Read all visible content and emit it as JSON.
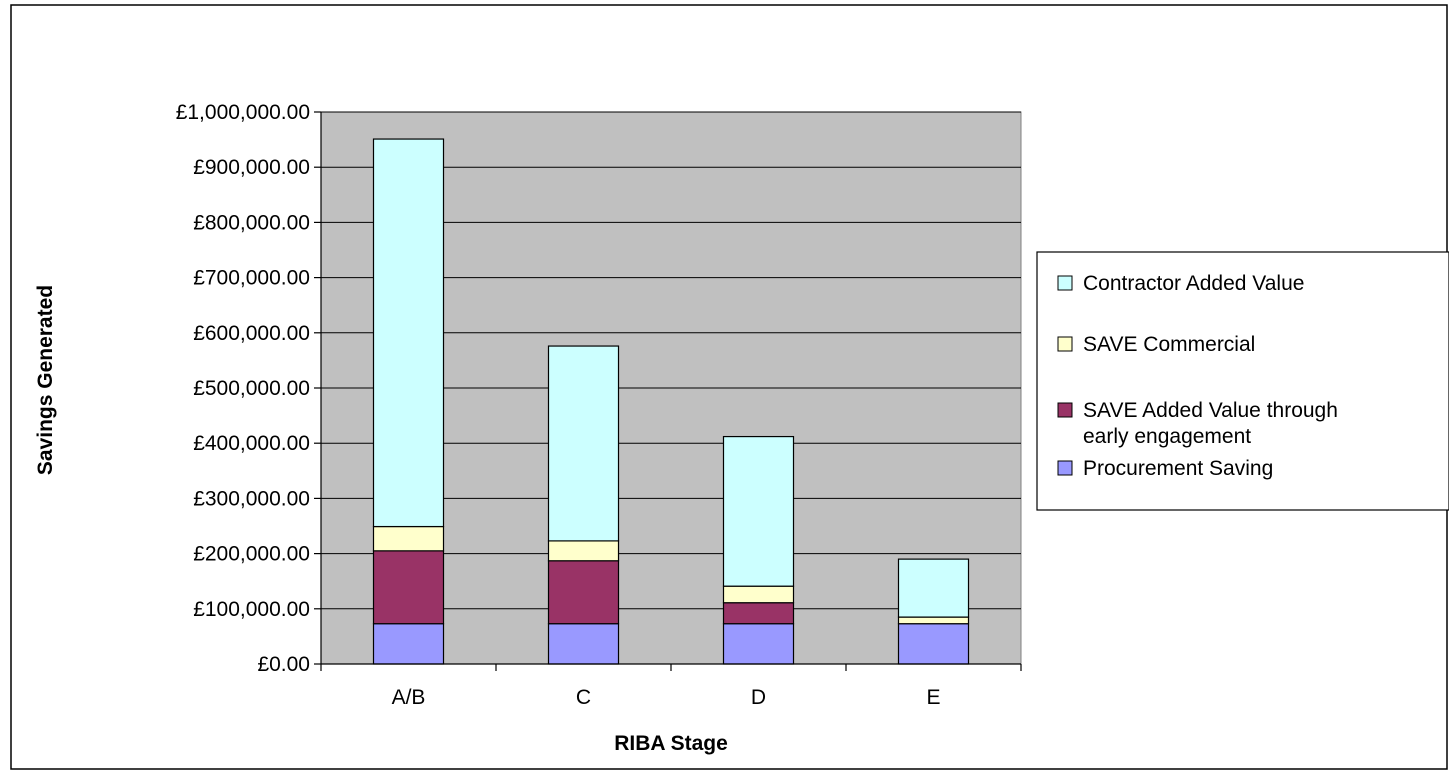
{
  "chart_data": {
    "type": "bar",
    "stacked": true,
    "categories": [
      "A/B",
      "C",
      "D",
      "E"
    ],
    "series": [
      {
        "name": "Procurement Saving",
        "color": "#9999ff",
        "values": [
          73000,
          73000,
          73000,
          73000
        ]
      },
      {
        "name": "SAVE Added Value through early engagement",
        "color": "#993366",
        "values": [
          132000,
          114000,
          38000,
          0
        ]
      },
      {
        "name": "SAVE Commercial",
        "color": "#ffffcc",
        "values": [
          44000,
          36000,
          30000,
          12000
        ]
      },
      {
        "name": "Contractor Added Value",
        "color": "#ccffff",
        "values": [
          702000,
          353000,
          271000,
          105000
        ]
      }
    ],
    "ylim": [
      0,
      1000000
    ],
    "yticks": [
      "£0.00",
      "£100,000.00",
      "£200,000.00",
      "£300,000.00",
      "£400,000.00",
      "£500,000.00",
      "£600,000.00",
      "£700,000.00",
      "£800,000.00",
      "£900,000.00",
      "£1,000,000.00"
    ],
    "xlabel": "RIBA Stage",
    "ylabel": "Savings Generated",
    "legend_order": [
      "Contractor Added Value",
      "SAVE Commercial",
      "SAVE Added Value through early engagement",
      "Procurement Saving"
    ],
    "legend_position": "right",
    "grid": true,
    "plot_background": "#c0c0c0"
  }
}
